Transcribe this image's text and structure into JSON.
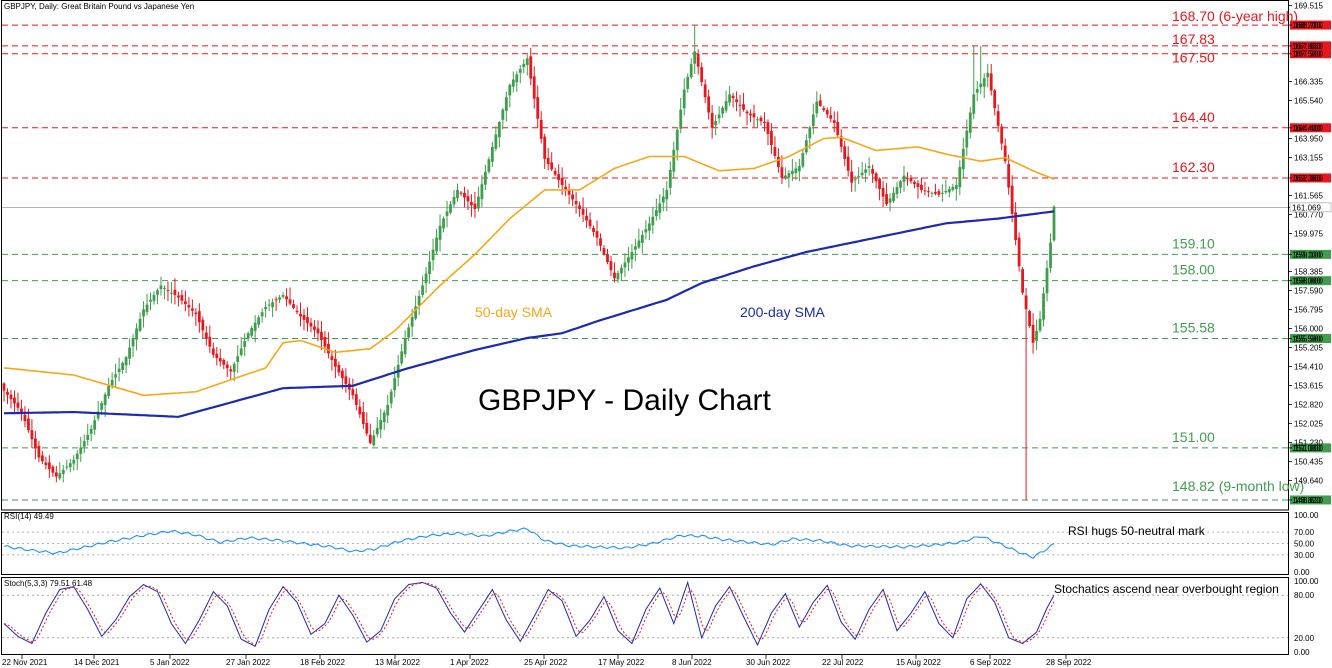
{
  "chart_data": {
    "type": "candlestick",
    "symbol_header": "GBPJPY, Daily:  Great Britain Pound vs Japanese Yen",
    "title": "GBPJPY - Daily Chart",
    "x_tick_labels": [
      "22 Nov 2021",
      "14 Dec 2021",
      "5 Jan 2022",
      "27 Jan 2022",
      "18 Feb 2022",
      "13 Mar 2022",
      "1 Apr 2022",
      "25 Apr 2022",
      "17 May 2022",
      "8 Jun 2022",
      "30 Jun 2022",
      "22 Jul 2022",
      "15 Aug 2022",
      "6 Sep 2022",
      "28 Sep 2022"
    ],
    "y_axis_ticks": [
      "169.515",
      "168.700",
      "167.830",
      "167.500",
      "166.335",
      "165.540",
      "164.400",
      "163.950",
      "163.155",
      "162.300",
      "161.565",
      "161.069",
      "160.770",
      "159.975",
      "159.100",
      "158.385",
      "158.000",
      "157.590",
      "156.795",
      "156.000",
      "155.580",
      "155.205",
      "154.410",
      "153.615",
      "152.820",
      "152.025",
      "151.230",
      "151.000",
      "150.435",
      "149.640",
      "148.820"
    ],
    "y_range": [
      148.4,
      169.75
    ],
    "current_price": "161.069",
    "resistance_levels": [
      {
        "value": 168.7,
        "axis_label": "168.700",
        "text": "168.70 (6-year high)",
        "color": "#e8171e"
      },
      {
        "value": 167.83,
        "axis_label": "167.830",
        "text": "167.83",
        "color": "#e8171e"
      },
      {
        "value": 167.5,
        "axis_label": "167.500",
        "text": "167.50",
        "color": "#e8171e"
      },
      {
        "value": 164.4,
        "axis_label": "164.400",
        "text": "164.40",
        "color": "#e8171e"
      },
      {
        "value": 162.3,
        "axis_label": "162.300",
        "text": "162.30",
        "color": "#e8171e"
      }
    ],
    "support_levels": [
      {
        "value": 159.1,
        "axis_label": "159.100",
        "text": "159.10",
        "color": "#3f9e4d"
      },
      {
        "value": 158.0,
        "axis_label": "158.000",
        "text": "158.00",
        "color": "#3f9e4d"
      },
      {
        "value": 155.58,
        "axis_label": "155.580",
        "text": "155.58",
        "color": "#3f9e4d"
      },
      {
        "value": 151.0,
        "axis_label": "151.000",
        "text": "151.00",
        "color": "#3f9e4d"
      },
      {
        "value": 148.82,
        "axis_label": "148.820",
        "text": "148.82 (9-month low)",
        "color": "#3f9e4d"
      }
    ],
    "close_keypoints": [
      [
        0,
        153.4
      ],
      [
        5,
        152.5
      ],
      [
        10,
        150.6
      ],
      [
        15,
        149.8
      ],
      [
        20,
        150.5
      ],
      [
        25,
        151.8
      ],
      [
        30,
        153.6
      ],
      [
        35,
        154.8
      ],
      [
        40,
        156.8
      ],
      [
        45,
        157.8
      ],
      [
        50,
        157.3
      ],
      [
        55,
        156.6
      ],
      [
        60,
        154.9
      ],
      [
        65,
        154.2
      ],
      [
        70,
        155.8
      ],
      [
        75,
        156.9
      ],
      [
        80,
        157.4
      ],
      [
        85,
        156.5
      ],
      [
        90,
        155.8
      ],
      [
        95,
        154.4
      ],
      [
        100,
        153.2
      ],
      [
        105,
        151.2
      ],
      [
        110,
        152.8
      ],
      [
        115,
        155.6
      ],
      [
        120,
        157.8
      ],
      [
        125,
        160.3
      ],
      [
        130,
        161.8
      ],
      [
        135,
        161.0
      ],
      [
        140,
        163.6
      ],
      [
        145,
        166.2
      ],
      [
        150,
        167.3
      ],
      [
        155,
        163.1
      ],
      [
        160,
        162.0
      ],
      [
        165,
        161.0
      ],
      [
        170,
        159.8
      ],
      [
        175,
        158.1
      ],
      [
        180,
        159.2
      ],
      [
        185,
        160.4
      ],
      [
        190,
        161.8
      ],
      [
        195,
        166.0
      ],
      [
        198,
        167.6
      ],
      [
        203,
        164.4
      ],
      [
        208,
        165.8
      ],
      [
        213,
        165.0
      ],
      [
        218,
        164.6
      ],
      [
        223,
        162.3
      ],
      [
        228,
        162.8
      ],
      [
        233,
        165.5
      ],
      [
        238,
        164.6
      ],
      [
        243,
        162.1
      ],
      [
        248,
        162.8
      ],
      [
        253,
        161.2
      ],
      [
        258,
        162.4
      ],
      [
        263,
        161.8
      ],
      [
        268,
        161.6
      ],
      [
        273,
        162.0
      ],
      [
        278,
        165.8
      ],
      [
        282,
        166.7
      ],
      [
        287,
        163.0
      ],
      [
        292,
        157.5
      ],
      [
        295,
        155.4
      ],
      [
        297,
        156.4
      ],
      [
        300,
        159.6
      ],
      [
        301,
        161.1
      ]
    ],
    "candle_count": 302,
    "sma50_label": "50-day SMA",
    "sma50_color": "#f5a718",
    "sma50_keypoints": [
      [
        0,
        154.35
      ],
      [
        20,
        154.05
      ],
      [
        40,
        153.2
      ],
      [
        55,
        153.35
      ],
      [
        75,
        154.35
      ],
      [
        80,
        155.4
      ],
      [
        85,
        155.5
      ],
      [
        95,
        155.0
      ],
      [
        105,
        155.15
      ],
      [
        112,
        155.9
      ],
      [
        125,
        157.8
      ],
      [
        135,
        159.1
      ],
      [
        145,
        160.6
      ],
      [
        155,
        161.8
      ],
      [
        165,
        161.8
      ],
      [
        175,
        162.7
      ],
      [
        185,
        163.2
      ],
      [
        195,
        163.2
      ],
      [
        205,
        162.6
      ],
      [
        215,
        162.7
      ],
      [
        225,
        163.2
      ],
      [
        235,
        163.95
      ],
      [
        240,
        164.0
      ],
      [
        250,
        163.45
      ],
      [
        262,
        163.6
      ],
      [
        270,
        163.3
      ],
      [
        280,
        163.0
      ],
      [
        287,
        163.15
      ],
      [
        295,
        162.6
      ],
      [
        301,
        162.25
      ]
    ],
    "sma200_label": "200-day SMA",
    "sma200_color": "#1c2ab0",
    "sma200_keypoints": [
      [
        0,
        152.45
      ],
      [
        20,
        152.5
      ],
      [
        50,
        152.3
      ],
      [
        80,
        153.5
      ],
      [
        100,
        153.6
      ],
      [
        115,
        154.3
      ],
      [
        135,
        155.1
      ],
      [
        150,
        155.6
      ],
      [
        160,
        155.8
      ],
      [
        170,
        156.3
      ],
      [
        190,
        157.2
      ],
      [
        200,
        157.9
      ],
      [
        215,
        158.6
      ],
      [
        230,
        159.2
      ],
      [
        250,
        159.8
      ],
      [
        270,
        160.4
      ],
      [
        285,
        160.6
      ],
      [
        301,
        160.9
      ]
    ],
    "rsi": {
      "header": "RSI(14) 49.49",
      "annotation": "RSI hugs 50-neutral mark",
      "color": "#1e90ff",
      "levels": [
        100.0,
        70.0,
        50.0,
        30.0,
        0.0
      ],
      "level_labels": [
        "100.00",
        "70.00",
        "50.00",
        "30.00",
        "0.00"
      ],
      "keypoints": [
        [
          0,
          45
        ],
        [
          8,
          38
        ],
        [
          15,
          33
        ],
        [
          22,
          42
        ],
        [
          30,
          53
        ],
        [
          40,
          64
        ],
        [
          48,
          72
        ],
        [
          55,
          65
        ],
        [
          62,
          52
        ],
        [
          70,
          60
        ],
        [
          78,
          56
        ],
        [
          86,
          50
        ],
        [
          94,
          44
        ],
        [
          100,
          36
        ],
        [
          106,
          40
        ],
        [
          114,
          55
        ],
        [
          122,
          64
        ],
        [
          130,
          68
        ],
        [
          138,
          63
        ],
        [
          146,
          73
        ],
        [
          150,
          76
        ],
        [
          155,
          55
        ],
        [
          162,
          46
        ],
        [
          170,
          44
        ],
        [
          178,
          42
        ],
        [
          186,
          50
        ],
        [
          194,
          64
        ],
        [
          200,
          63
        ],
        [
          206,
          57
        ],
        [
          214,
          52
        ],
        [
          220,
          48
        ],
        [
          226,
          58
        ],
        [
          234,
          55
        ],
        [
          242,
          46
        ],
        [
          250,
          45
        ],
        [
          258,
          44
        ],
        [
          266,
          47
        ],
        [
          274,
          52
        ],
        [
          280,
          63
        ],
        [
          286,
          48
        ],
        [
          292,
          32
        ],
        [
          295,
          26
        ],
        [
          298,
          37
        ],
        [
          301,
          49
        ]
      ]
    },
    "stoch": {
      "header": "Stoch(5,3,3) 79.51 61.48",
      "annotation": "Stochatics ascend near overbought region",
      "k_color": "#1c2ab0",
      "d_color": "#e8171e",
      "levels": [
        100.0,
        80.0,
        20.0,
        0.0
      ],
      "level_labels": [
        "100.00",
        "80.00",
        "20.00",
        "0.00"
      ],
      "keypoints": [
        [
          0,
          40
        ],
        [
          4,
          22
        ],
        [
          8,
          12
        ],
        [
          12,
          55
        ],
        [
          16,
          88
        ],
        [
          20,
          92
        ],
        [
          24,
          60
        ],
        [
          28,
          22
        ],
        [
          32,
          45
        ],
        [
          36,
          78
        ],
        [
          40,
          95
        ],
        [
          44,
          85
        ],
        [
          48,
          40
        ],
        [
          52,
          12
        ],
        [
          56,
          45
        ],
        [
          60,
          85
        ],
        [
          64,
          65
        ],
        [
          68,
          18
        ],
        [
          72,
          8
        ],
        [
          76,
          60
        ],
        [
          80,
          92
        ],
        [
          84,
          70
        ],
        [
          88,
          25
        ],
        [
          92,
          40
        ],
        [
          96,
          80
        ],
        [
          100,
          52
        ],
        [
          104,
          14
        ],
        [
          108,
          30
        ],
        [
          112,
          75
        ],
        [
          116,
          95
        ],
        [
          120,
          98
        ],
        [
          124,
          90
        ],
        [
          128,
          55
        ],
        [
          132,
          28
        ],
        [
          136,
          58
        ],
        [
          140,
          88
        ],
        [
          144,
          45
        ],
        [
          148,
          15
        ],
        [
          152,
          50
        ],
        [
          156,
          88
        ],
        [
          160,
          72
        ],
        [
          164,
          22
        ],
        [
          168,
          45
        ],
        [
          172,
          78
        ],
        [
          176,
          30
        ],
        [
          180,
          12
        ],
        [
          184,
          60
        ],
        [
          188,
          90
        ],
        [
          192,
          40
        ],
        [
          196,
          98
        ],
        [
          200,
          20
        ],
        [
          204,
          65
        ],
        [
          208,
          92
        ],
        [
          212,
          50
        ],
        [
          216,
          10
        ],
        [
          220,
          55
        ],
        [
          224,
          82
        ],
        [
          228,
          35
        ],
        [
          232,
          70
        ],
        [
          236,
          94
        ],
        [
          240,
          42
        ],
        [
          244,
          18
        ],
        [
          248,
          60
        ],
        [
          252,
          88
        ],
        [
          256,
          30
        ],
        [
          260,
          55
        ],
        [
          264,
          85
        ],
        [
          268,
          40
        ],
        [
          272,
          20
        ],
        [
          276,
          75
        ],
        [
          280,
          96
        ],
        [
          284,
          70
        ],
        [
          288,
          20
        ],
        [
          292,
          12
        ],
        [
          296,
          28
        ],
        [
          299,
          62
        ],
        [
          301,
          80
        ]
      ]
    }
  }
}
